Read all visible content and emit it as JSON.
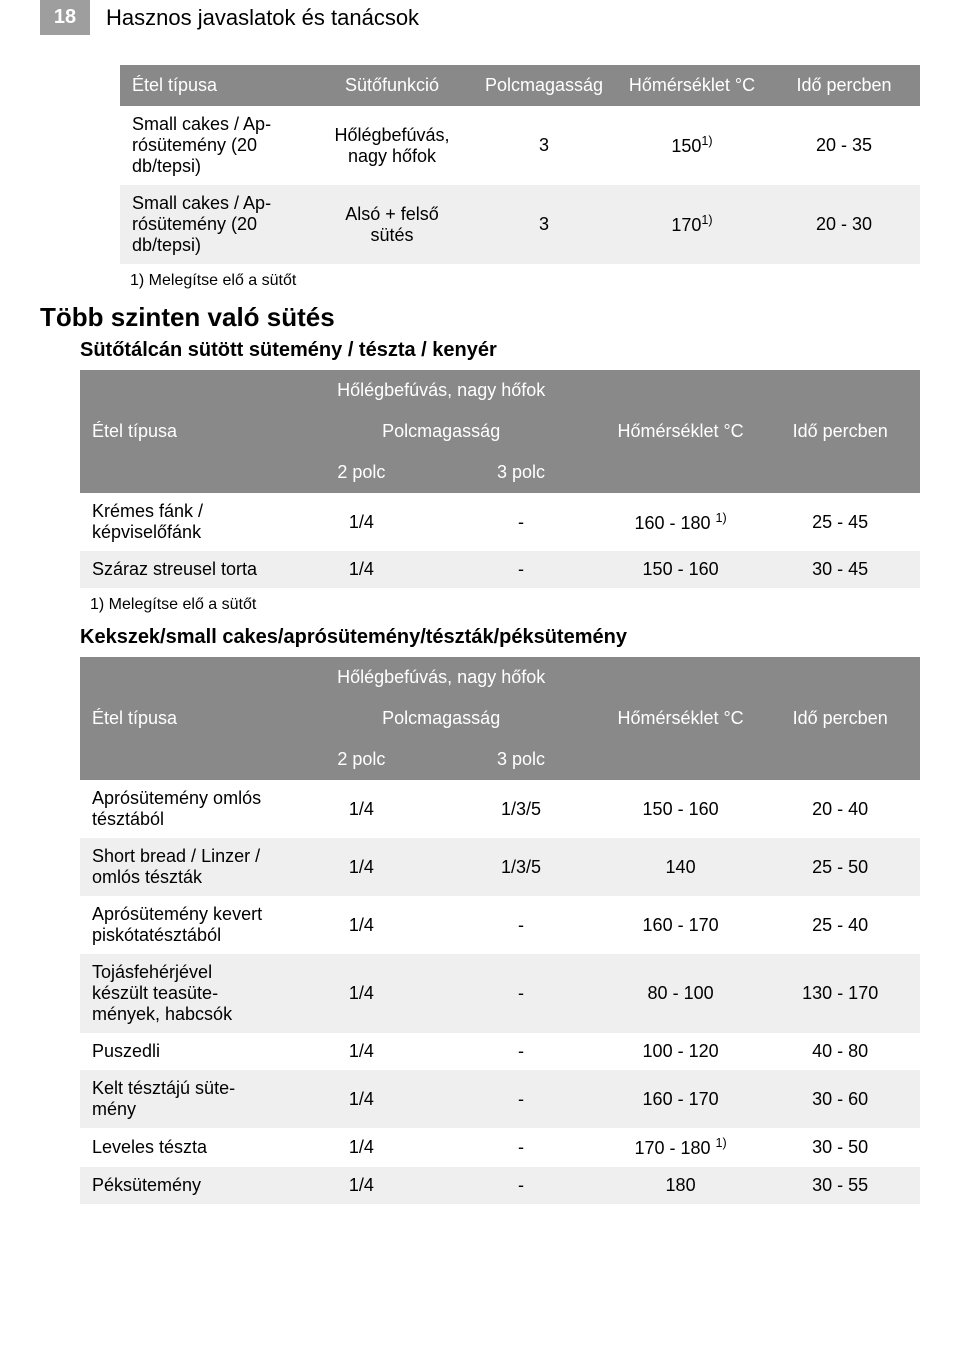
{
  "header": {
    "page_number": "18",
    "title": "Hasznos javaslatok és tanácsok"
  },
  "table1": {
    "columns": [
      "Étel típusa",
      "Sütőfunkció",
      "Polcmagasság",
      "Hőmérséklet °C",
      "Idő percben"
    ],
    "rows": [
      {
        "c0": "Small cakes / Ap­rósütemény (20 db/tepsi)",
        "c1": "Hőlégbefúvás, nagy hőfok",
        "c2": "3",
        "c3": "150",
        "c3_sup": "1)",
        "c4": "20 - 35",
        "alt": false
      },
      {
        "c0": "Small cakes / Ap­rósütemény (20 db/tepsi)",
        "c1": "Alsó + felső sütés",
        "c2": "3",
        "c3": "170",
        "c3_sup": "1)",
        "c4": "20 - 30",
        "alt": true
      }
    ],
    "footnote": "1) Melegítse elő a sütőt"
  },
  "section2": {
    "h2": "Több szinten való sütés",
    "h3": "Sütőtálcán sütött sütemény / tészta / kenyér"
  },
  "table2": {
    "top_header": "Hőlégbefúvás, nagy hőfok",
    "col_left": "Étel típusa",
    "col_mid": "Polcmagasság",
    "col_right1": "Hőmérséklet °C",
    "col_right2": "Idő percben",
    "sub_left": "2 polc",
    "sub_right": "3 polc",
    "rows": [
      {
        "c0": "Krémes fánk / képviselőfánk",
        "c1": "1/4",
        "c2": "-",
        "c3": "160 - 180 ",
        "c3_sup": "1)",
        "c4": "25 - 45",
        "alt": false
      },
      {
        "c0": "Száraz streusel torta",
        "c1": "1/4",
        "c2": "-",
        "c3": "150 - 160",
        "c3_sup": "",
        "c4": "30 - 45",
        "alt": true
      }
    ],
    "footnote": "1) Melegítse elő a sütőt"
  },
  "section3": {
    "h3": "Kekszek/small cakes/aprósütemény/tészták/péksütemény"
  },
  "table3": {
    "top_header": "Hőlégbefúvás, nagy hőfok",
    "col_left": "Étel típusa",
    "col_mid": "Polcmagasság",
    "col_right1": "Hőmérséklet °C",
    "col_right2": "Idő percben",
    "sub_left": "2 polc",
    "sub_right": "3 polc",
    "rows": [
      {
        "c0": "Aprósütemény omlós tésztából",
        "c1": "1/4",
        "c2": "1/3/5",
        "c3": "150 - 160",
        "c3_sup": "",
        "c4": "20 - 40",
        "alt": false
      },
      {
        "c0": "Short bread / Lin­zer / omlós tész­ták",
        "c1": "1/4",
        "c2": "1/3/5",
        "c3": "140",
        "c3_sup": "",
        "c4": "25 - 50",
        "alt": true
      },
      {
        "c0": "Aprósütemény kevert piskóta­tésztából",
        "c1": "1/4",
        "c2": "-",
        "c3": "160 - 170",
        "c3_sup": "",
        "c4": "25 - 40",
        "alt": false
      },
      {
        "c0": "Tojásfehérjével készült teasüte­mények, habcsók",
        "c1": "1/4",
        "c2": "-",
        "c3": "80 - 100",
        "c3_sup": "",
        "c4": "130 - 170",
        "alt": true
      },
      {
        "c0": "Puszedli",
        "c1": "1/4",
        "c2": "-",
        "c3": "100 - 120",
        "c3_sup": "",
        "c4": "40 - 80",
        "alt": false
      },
      {
        "c0": "Kelt tésztájú süte­mény",
        "c1": "1/4",
        "c2": "-",
        "c3": "160 - 170",
        "c3_sup": "",
        "c4": "30 - 60",
        "alt": true
      },
      {
        "c0": "Leveles tészta",
        "c1": "1/4",
        "c2": "-",
        "c3": "170 - 180 ",
        "c3_sup": "1)",
        "c4": "30 - 50",
        "alt": false
      },
      {
        "c0": "Péksütemény",
        "c1": "1/4",
        "c2": "-",
        "c3": "180",
        "c3_sup": "",
        "c4": "30 - 55",
        "alt": true
      }
    ]
  },
  "colors": {
    "header_bg": "#898989",
    "header_fg": "#ffffff",
    "alt_row_bg": "#efefef",
    "page_num_bg": "#9e9e9e"
  }
}
